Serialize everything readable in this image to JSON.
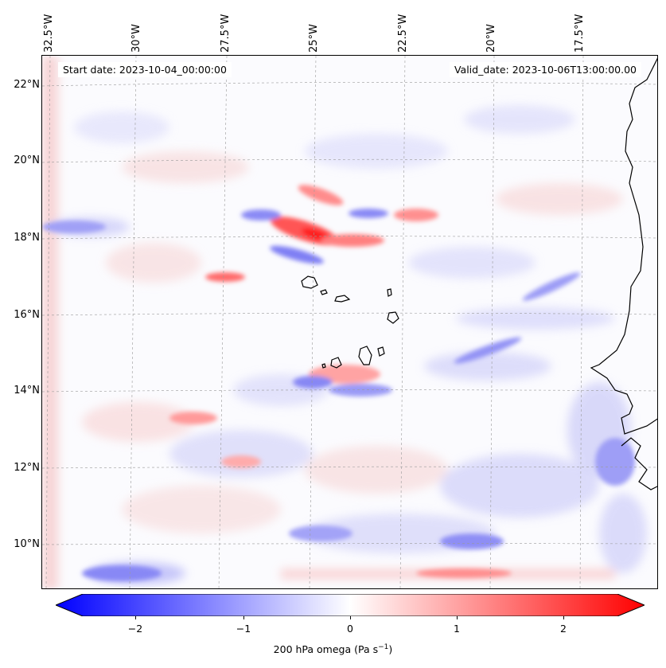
{
  "map": {
    "start_date": "Start date: 2023-10-04_00:00:00",
    "valid_date": "Valid_date: 2023-10-06T13:00:00.00",
    "lat_labels": [
      "22°N",
      "20°N",
      "18°N",
      "16°N",
      "14°N",
      "12°N",
      "10°N"
    ],
    "lon_labels": [
      "32.5°W",
      "30°W",
      "27.5°W",
      "25°W",
      "22.5°W",
      "20°W",
      "17.5°W"
    ],
    "variable": "200 hPa omega",
    "unit_base": "(Pa s",
    "unit_exp": "−1",
    "unit_close": ")"
  },
  "colorbar": {
    "ticks": [
      "−2",
      "−1",
      "0",
      "1",
      "2"
    ],
    "min": -2.5,
    "max": 2.5,
    "colors": {
      "negative": "#0000ff",
      "zero": "#ffffff",
      "positive": "#ff0000"
    }
  }
}
